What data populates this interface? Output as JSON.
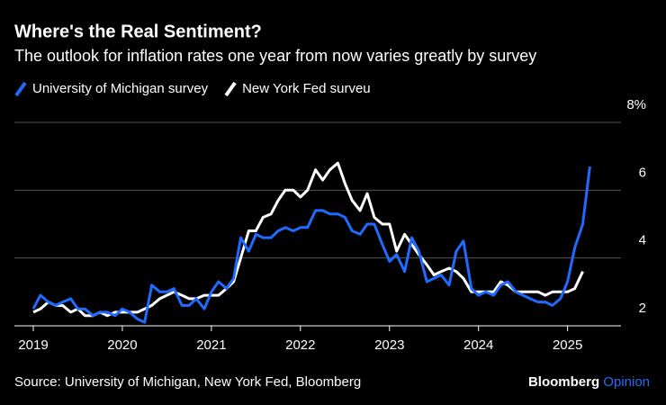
{
  "chart_data": {
    "type": "line",
    "title": "Where's the Real Sentiment?",
    "subtitle": "The outlook for inflation rates one year from now varies greatly by survey",
    "source": "Source: University of Michigan, New York Fed, Bloomberg",
    "brand": "Bloomberg",
    "brand_suffix": "Opinion",
    "x": [
      2019,
      2019.08,
      2019.17,
      2019.25,
      2019.33,
      2019.42,
      2019.5,
      2019.58,
      2019.67,
      2019.75,
      2019.83,
      2019.92,
      2020,
      2020.08,
      2020.17,
      2020.25,
      2020.33,
      2020.42,
      2020.5,
      2020.58,
      2020.67,
      2020.75,
      2020.83,
      2020.92,
      2021,
      2021.08,
      2021.17,
      2021.25,
      2021.33,
      2021.42,
      2021.5,
      2021.58,
      2021.67,
      2021.75,
      2021.83,
      2021.92,
      2022,
      2022.08,
      2022.17,
      2022.25,
      2022.33,
      2022.42,
      2022.5,
      2022.58,
      2022.67,
      2022.75,
      2022.83,
      2022.92,
      2023,
      2023.08,
      2023.17,
      2023.25,
      2023.33,
      2023.42,
      2023.5,
      2023.58,
      2023.67,
      2023.75,
      2023.83,
      2023.92,
      2024,
      2024.08,
      2024.17,
      2024.25,
      2024.33,
      2024.42,
      2024.5,
      2024.58,
      2024.67,
      2024.75,
      2024.83,
      2024.92,
      2025,
      2025.08,
      2025.17,
      2025.25
    ],
    "series": [
      {
        "name": "University of Michigan survey",
        "color": "#1f6bff",
        "values": [
          2.5,
          2.9,
          2.7,
          2.6,
          2.7,
          2.8,
          2.5,
          2.5,
          2.3,
          2.4,
          2.4,
          2.3,
          2.5,
          2.4,
          2.2,
          2.1,
          3.2,
          3.0,
          3.0,
          3.1,
          2.6,
          2.6,
          2.8,
          2.5,
          3.0,
          3.3,
          3.1,
          3.4,
          4.6,
          4.2,
          4.7,
          4.6,
          4.6,
          4.8,
          4.9,
          4.8,
          4.9,
          4.9,
          5.4,
          5.4,
          5.3,
          5.3,
          5.2,
          4.8,
          4.7,
          5.0,
          5.0,
          4.4,
          3.9,
          4.1,
          3.6,
          4.6,
          4.2,
          3.3,
          3.4,
          3.5,
          3.2,
          4.2,
          4.5,
          3.1,
          2.9,
          3.0,
          2.9,
          3.2,
          3.3,
          3.0,
          2.9,
          2.8,
          2.7,
          2.7,
          2.6,
          2.8,
          3.3,
          4.3,
          5.0,
          6.7
        ]
      },
      {
        "name": "New York Fed surveu",
        "color": "#ffffff",
        "values": [
          2.4,
          2.5,
          2.7,
          2.6,
          2.6,
          2.4,
          2.5,
          2.3,
          2.3,
          2.4,
          2.3,
          2.4,
          2.4,
          2.4,
          2.4,
          2.5,
          2.6,
          2.8,
          2.9,
          3.0,
          2.9,
          2.8,
          2.8,
          2.9,
          2.9,
          2.9,
          3.1,
          3.3,
          4.0,
          4.8,
          4.8,
          5.2,
          5.3,
          5.7,
          6.0,
          6.0,
          5.8,
          6.0,
          6.6,
          6.3,
          6.6,
          6.8,
          6.2,
          5.7,
          5.4,
          5.9,
          5.2,
          5.0,
          5.0,
          4.2,
          4.7,
          4.4,
          4.1,
          3.8,
          3.5,
          3.6,
          3.7,
          3.6,
          3.4,
          3.0,
          3.0,
          3.0,
          3.0,
          3.3,
          3.2,
          3.0,
          3.0,
          3.0,
          3.0,
          2.9,
          3.0,
          3.0,
          3.0,
          3.1,
          3.6,
          null
        ]
      }
    ],
    "xlim": [
      2019,
      2025.6
    ],
    "xticks": [
      2019,
      2020,
      2021,
      2022,
      2023,
      2024,
      2025
    ],
    "ylim": [
      2,
      8
    ],
    "yticks": [
      2,
      4,
      6,
      {
        "value": 8,
        "label": "8%"
      }
    ],
    "grid": true
  }
}
